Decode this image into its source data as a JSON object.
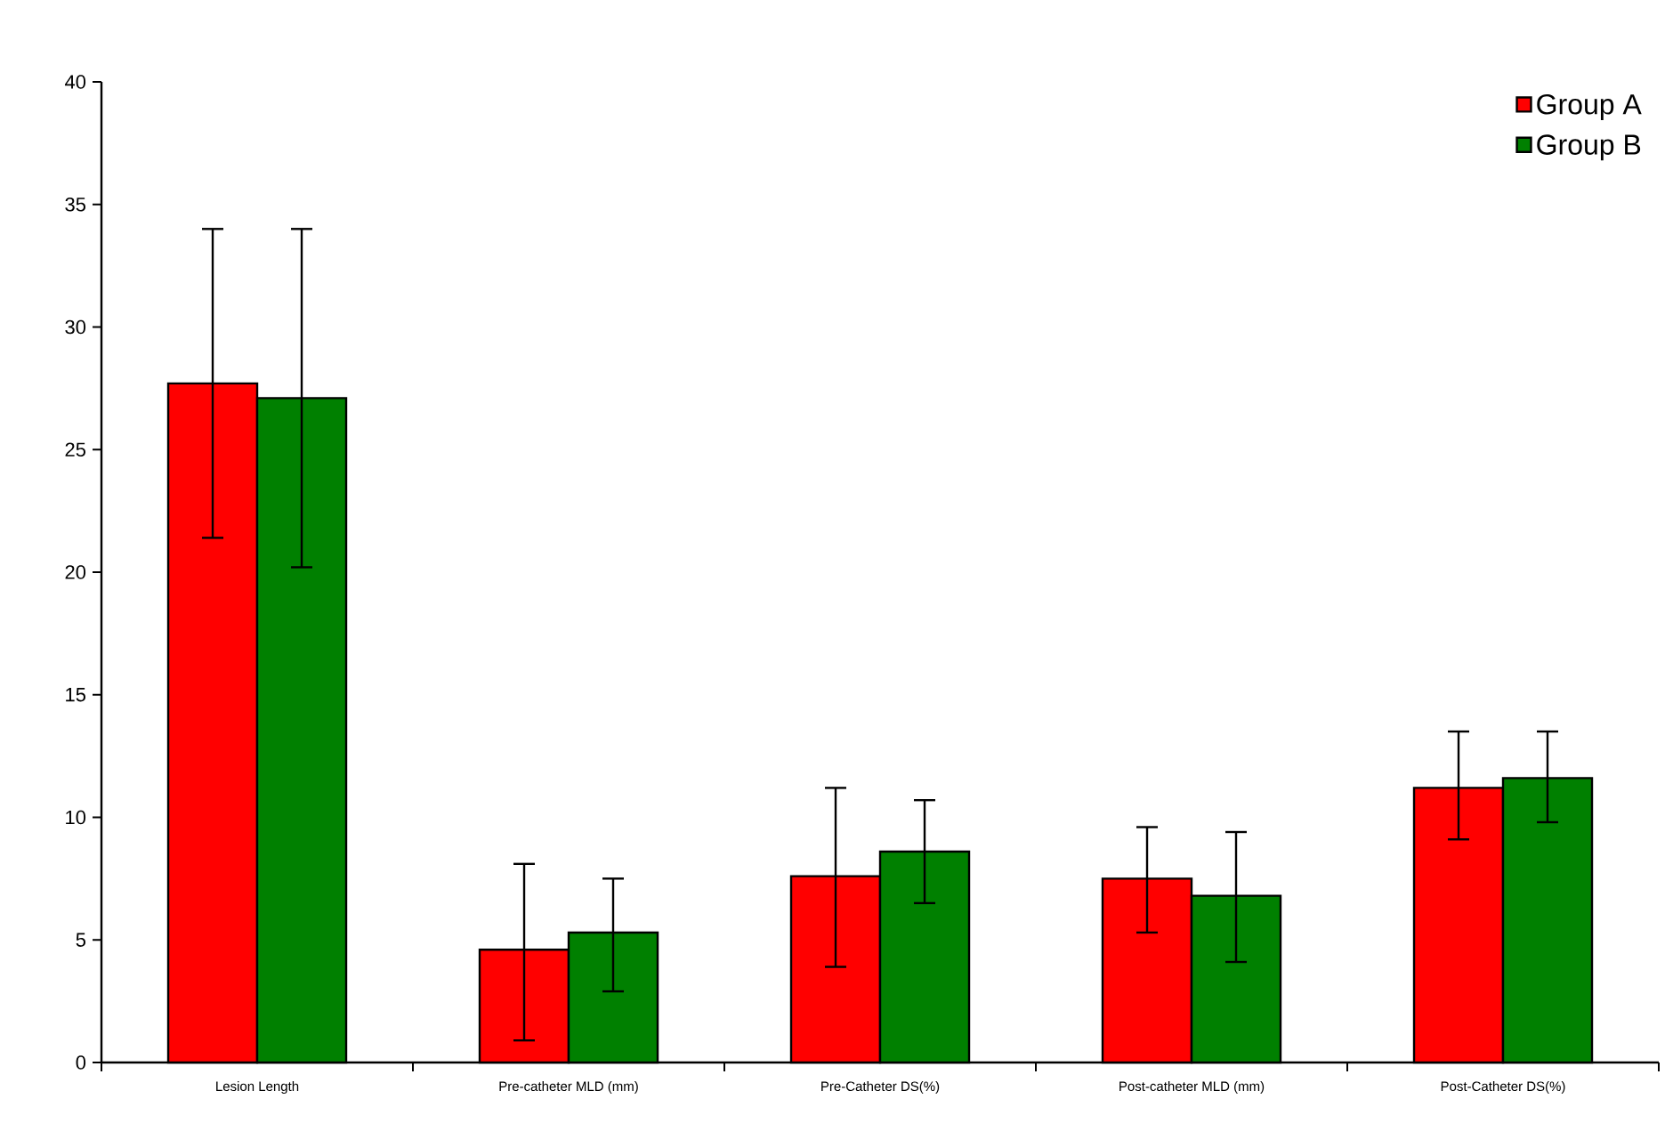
{
  "chart_data": {
    "type": "bar",
    "categories": [
      "Lesion Length",
      "Pre-catheter MLD (mm)",
      "Pre-Catheter DS(%)",
      "Post-catheter MLD (mm)",
      "Post-Catheter DS(%)"
    ],
    "series": [
      {
        "name": "Group A",
        "color": "#ff0000",
        "values": [
          27.7,
          4.6,
          7.6,
          7.5,
          11.2
        ],
        "errors": [
          [
            21.4,
            34.0
          ],
          [
            0.9,
            8.1
          ],
          [
            3.9,
            11.2
          ],
          [
            5.3,
            9.6
          ],
          [
            9.1,
            13.5
          ]
        ]
      },
      {
        "name": "Group B",
        "color": "#008000",
        "values": [
          27.1,
          5.3,
          8.6,
          6.8,
          11.6
        ],
        "errors": [
          [
            20.2,
            34.0
          ],
          [
            2.9,
            7.5
          ],
          [
            6.5,
            10.7
          ],
          [
            4.1,
            9.4
          ],
          [
            9.8,
            13.5
          ]
        ]
      }
    ],
    "ylim": [
      0,
      40
    ],
    "yticks": [
      0,
      5,
      10,
      15,
      20,
      25,
      30,
      35,
      40
    ],
    "grid": false,
    "legend": "top right"
  }
}
